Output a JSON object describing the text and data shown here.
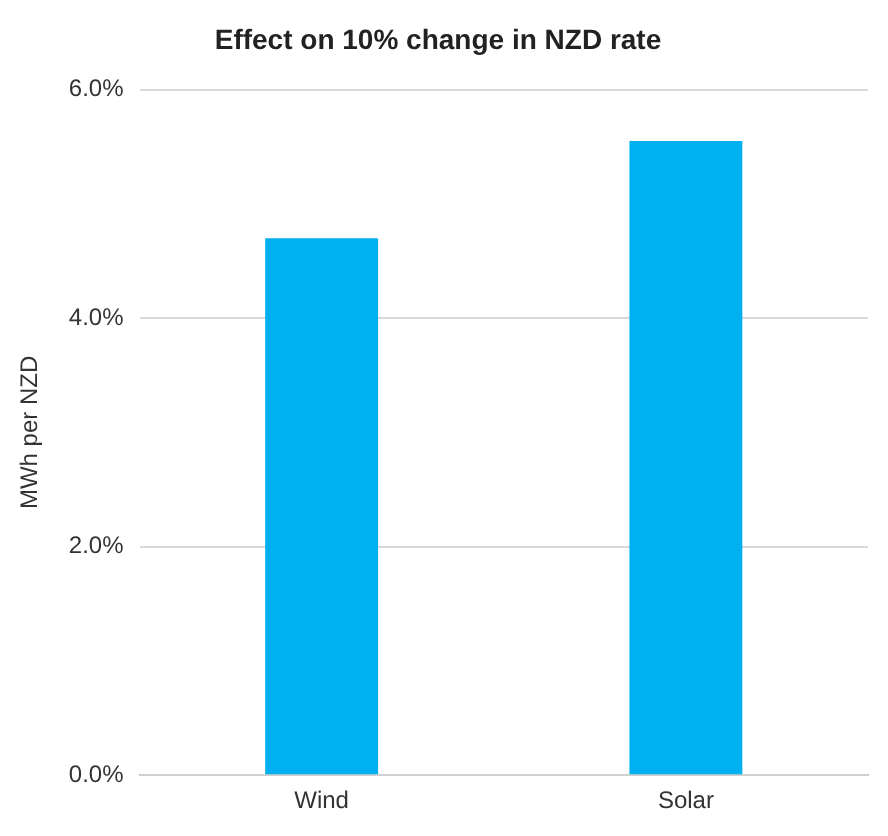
{
  "chart_data": {
    "type": "bar",
    "title": "Effect on 10% change in NZD rate",
    "ylabel": "MWh per NZD",
    "categories": [
      "Wind",
      "Solar"
    ],
    "series": [
      {
        "color": "#00b0f0",
        "values": [
          4.7,
          5.55
        ]
      }
    ],
    "ylim": [
      0,
      6
    ],
    "yticks": [
      {
        "value": 0,
        "label": "0.0%"
      },
      {
        "value": 2,
        "label": "2.0%"
      },
      {
        "value": 4,
        "label": "4.0%"
      },
      {
        "value": 6,
        "label": "6.0%"
      }
    ],
    "grid": "y",
    "legend": false
  }
}
